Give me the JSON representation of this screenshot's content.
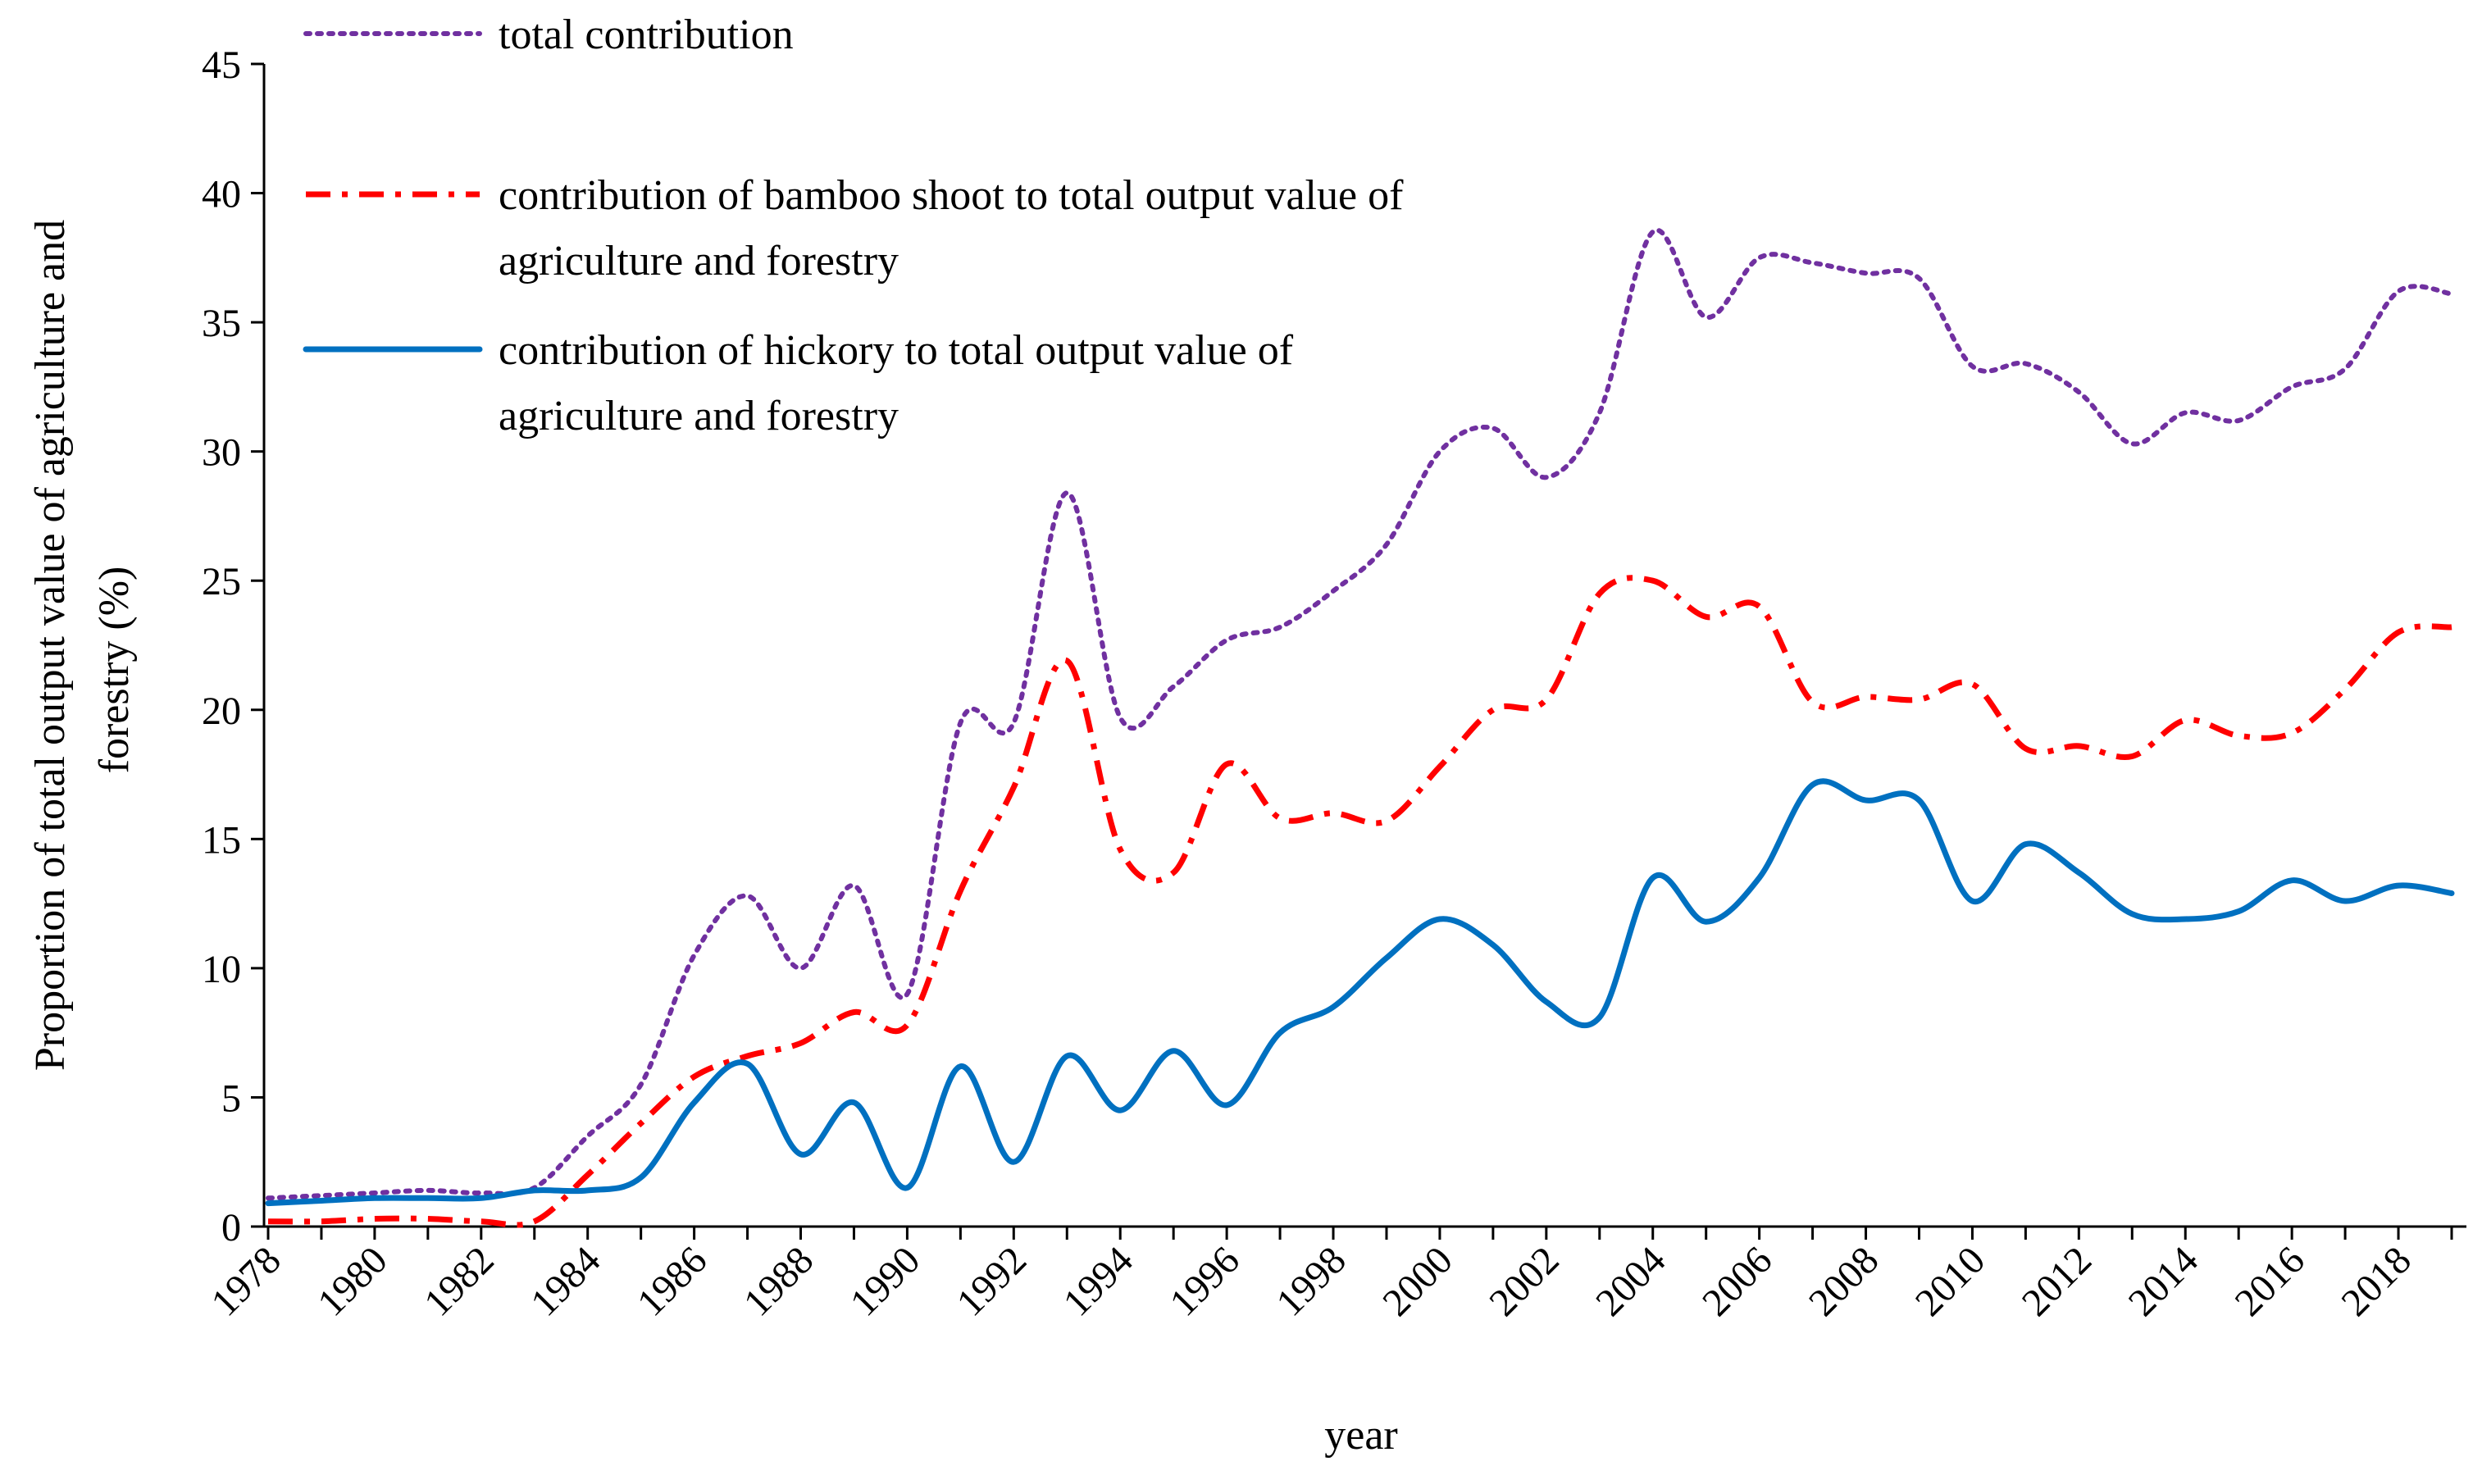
{
  "chart_data": {
    "type": "line",
    "title": "",
    "xlabel": "year",
    "ylabel": "Proportion of total output value of agriculture and forestry (%)",
    "ylabel_lines": [
      "Proportion of total output value of agriculture and",
      "forestry (%)"
    ],
    "ylim": [
      0,
      45
    ],
    "yticks": [
      0,
      5,
      10,
      15,
      20,
      25,
      30,
      35,
      40,
      45
    ],
    "xlim": [
      1978,
      2019
    ],
    "xtick_labels": [
      "1978",
      "1980",
      "1982",
      "1984",
      "1986",
      "1988",
      "1990",
      "1992",
      "1994",
      "1996",
      "1998",
      "2000",
      "2002",
      "2004",
      "2006",
      "2008",
      "2010",
      "2012",
      "2014",
      "2016",
      "2018"
    ],
    "legend_position": "top-left",
    "series": [
      {
        "name": "total contribution",
        "legend_lines": [
          "total contribution"
        ],
        "color": "#7030A0",
        "style": "dotted",
        "x": [
          1978,
          1979,
          1980,
          1981,
          1982,
          1983,
          1984,
          1985,
          1986,
          1987,
          1988,
          1989,
          1990,
          1991,
          1992,
          1993,
          1994,
          1995,
          1996,
          1997,
          1998,
          1999,
          2000,
          2001,
          2002,
          2003,
          2004,
          2005,
          2006,
          2007,
          2008,
          2009,
          2010,
          2011,
          2012,
          2013,
          2014,
          2015,
          2016,
          2017,
          2018,
          2019
        ],
        "values": [
          1.1,
          1.2,
          1.3,
          1.4,
          1.3,
          1.5,
          3.5,
          5.5,
          10.5,
          12.8,
          10.0,
          13.2,
          9.0,
          19.5,
          19.5,
          28.4,
          19.7,
          20.9,
          22.7,
          23.2,
          24.6,
          26.4,
          30.0,
          30.9,
          29.0,
          31.5,
          38.5,
          35.2,
          37.5,
          37.3,
          36.9,
          36.7,
          33.3,
          33.4,
          32.3,
          30.3,
          31.5,
          31.2,
          32.5,
          33.2,
          36.2,
          36.1
        ]
      },
      {
        "name": "contribution of bamboo shoot to total output value of agriculture and forestry",
        "legend_lines": [
          "contribution of bamboo shoot to total output value of",
          "agriculture and forestry"
        ],
        "color": "#FF0000",
        "style": "dashdot",
        "x": [
          1978,
          1979,
          1980,
          1981,
          1982,
          1983,
          1984,
          1985,
          1986,
          1987,
          1988,
          1989,
          1990,
          1991,
          1992,
          1993,
          1994,
          1995,
          1996,
          1997,
          1998,
          1999,
          2000,
          2001,
          2002,
          2003,
          2004,
          2005,
          2006,
          2007,
          2008,
          2009,
          2010,
          2011,
          2012,
          2013,
          2014,
          2015,
          2016,
          2017,
          2018,
          2019
        ],
        "values": [
          0.2,
          0.2,
          0.3,
          0.3,
          0.2,
          0.2,
          2.0,
          4.0,
          5.8,
          6.6,
          7.1,
          8.3,
          7.8,
          13.0,
          17.0,
          21.9,
          14.6,
          13.7,
          17.9,
          15.8,
          16.0,
          15.7,
          17.8,
          20.0,
          20.4,
          24.5,
          25.0,
          23.6,
          24.0,
          20.3,
          20.5,
          20.4,
          21.0,
          18.5,
          18.6,
          18.2,
          19.6,
          19.0,
          19.1,
          20.8,
          23.0,
          23.2
        ]
      },
      {
        "name": "contribution of hickory to total output value of agriculture and forestry",
        "legend_lines": [
          "contribution of hickory to total output value of",
          "agriculture and forestry"
        ],
        "color": "#0070C0",
        "style": "solid",
        "x": [
          1978,
          1979,
          1980,
          1981,
          1982,
          1983,
          1984,
          1985,
          1986,
          1987,
          1988,
          1989,
          1990,
          1991,
          1992,
          1993,
          1994,
          1995,
          1996,
          1997,
          1998,
          1999,
          2000,
          2001,
          2002,
          2003,
          2004,
          2005,
          2006,
          2007,
          2008,
          2009,
          2010,
          2011,
          2012,
          2013,
          2014,
          2015,
          2016,
          2017,
          2018,
          2019
        ],
        "values": [
          0.9,
          1.0,
          1.1,
          1.1,
          1.1,
          1.4,
          1.4,
          1.9,
          4.8,
          6.3,
          2.8,
          4.8,
          1.5,
          6.2,
          2.5,
          6.6,
          4.5,
          6.8,
          4.7,
          7.5,
          8.5,
          10.4,
          11.9,
          10.9,
          8.7,
          8.1,
          13.5,
          11.8,
          13.5,
          17.1,
          16.5,
          16.5,
          12.6,
          14.8,
          13.7,
          12.1,
          11.9,
          12.2,
          13.4,
          12.6,
          13.2,
          12.9
        ]
      }
    ]
  }
}
